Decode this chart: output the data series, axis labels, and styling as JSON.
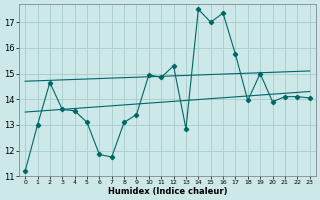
{
  "xlabel": "Humidex (Indice chaleur)",
  "bg_color": "#cce8e8",
  "grid_color": "#aacccc",
  "line_color": "#006666",
  "xlim": [
    -0.5,
    23.5
  ],
  "ylim": [
    11.0,
    17.7
  ],
  "yticks": [
    11,
    12,
    13,
    14,
    15,
    16,
    17
  ],
  "xticks": [
    0,
    1,
    2,
    3,
    4,
    5,
    6,
    7,
    8,
    9,
    10,
    11,
    12,
    13,
    14,
    15,
    16,
    17,
    18,
    19,
    20,
    21,
    22,
    23
  ],
  "zigzag_y": [
    11.2,
    13.0,
    14.65,
    13.6,
    13.55,
    13.1,
    11.85,
    11.75,
    13.1,
    13.4,
    14.95,
    14.85,
    15.3,
    12.85,
    17.5,
    17.0,
    17.35,
    15.75,
    13.95,
    15.0,
    13.9,
    14.1,
    14.1,
    14.05
  ],
  "trend1_x": [
    0,
    23
  ],
  "trend1_y": [
    14.7,
    15.1
  ],
  "trend2_x": [
    0,
    23
  ],
  "trend2_y": [
    13.5,
    14.3
  ],
  "lw": 0.8,
  "ms": 2.2
}
